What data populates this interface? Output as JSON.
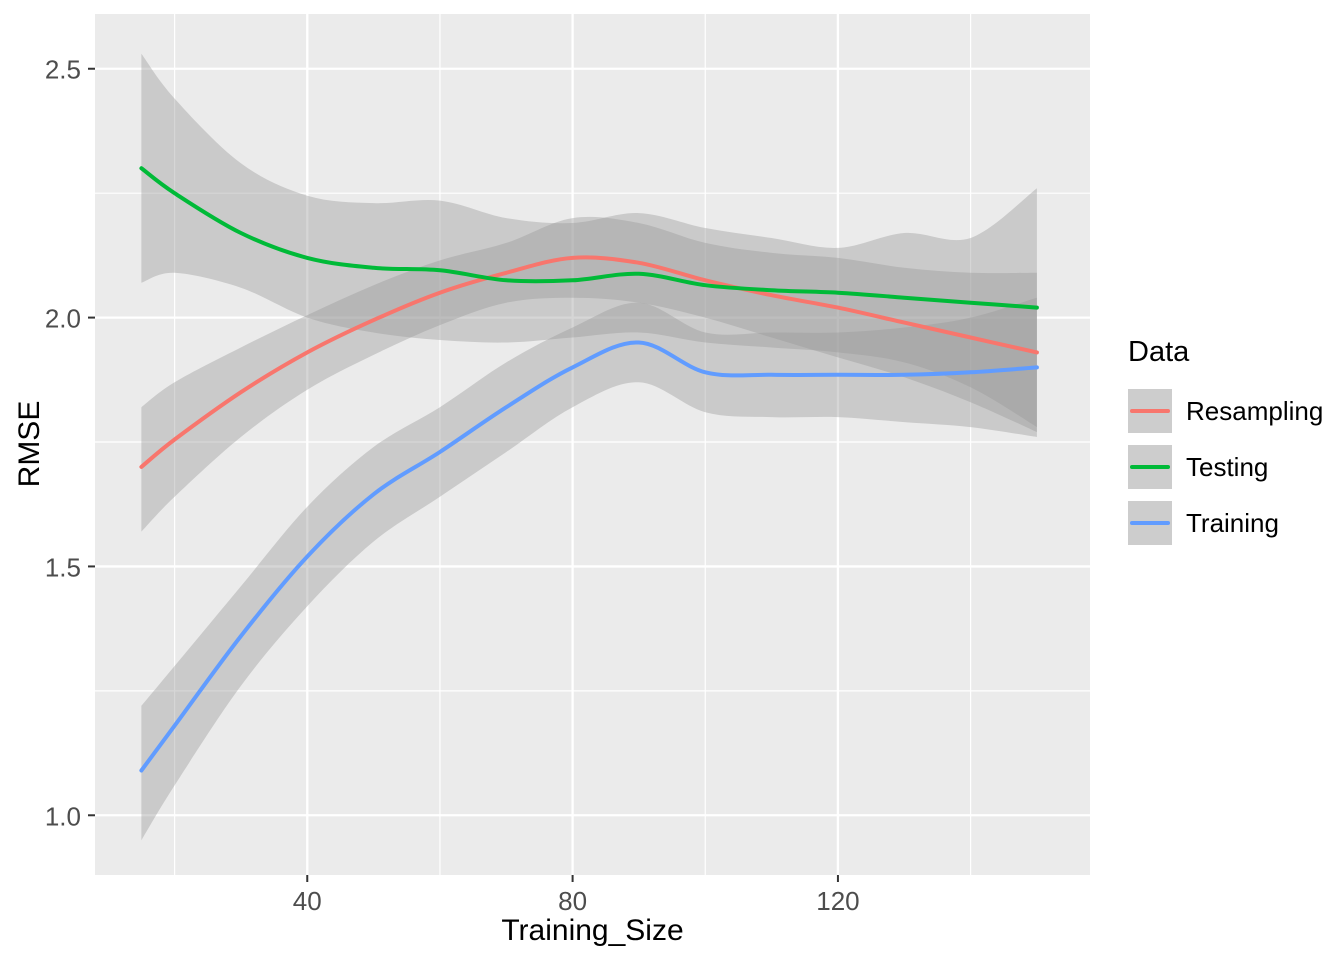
{
  "chart_data": {
    "type": "line",
    "xlabel": "Training_Size",
    "ylabel": "RMSE",
    "legend_title": "Data",
    "legend_position": "right",
    "grid": true,
    "panel_background": "#EBEBEB",
    "grid_color": "#FFFFFF",
    "ribbon_color": "#999999",
    "ribbon_opacity": 0.4,
    "tick_color": "#333333",
    "tick_label_color": "#4D4D4D",
    "xlim": [
      8,
      158
    ],
    "ylim": [
      0.88,
      2.61
    ],
    "x_ticks": [
      40,
      80,
      120
    ],
    "x_tick_labels": [
      "40",
      "80",
      "120"
    ],
    "x_minor_ticks": [
      20,
      60,
      100,
      140
    ],
    "y_ticks": [
      1.0,
      1.5,
      2.0,
      2.5
    ],
    "y_tick_labels": [
      "1.0",
      "1.5",
      "2.0",
      "2.5"
    ],
    "y_minor_ticks": [
      1.25,
      1.75,
      2.25
    ],
    "x": [
      15,
      20,
      30,
      40,
      50,
      60,
      70,
      80,
      90,
      100,
      110,
      120,
      130,
      140,
      150
    ],
    "series": [
      {
        "name": "Resampling",
        "color": "#F8766D",
        "values": [
          1.7,
          1.755,
          1.85,
          1.93,
          1.995,
          2.05,
          2.09,
          2.12,
          2.11,
          2.075,
          2.045,
          2.02,
          1.99,
          1.96,
          1.93
        ],
        "ribbon_lower": [
          1.57,
          1.64,
          1.76,
          1.855,
          1.925,
          1.985,
          2.03,
          2.04,
          2.03,
          2.0,
          1.96,
          1.92,
          1.88,
          1.83,
          1.77
        ],
        "ribbon_upper": [
          1.82,
          1.87,
          1.94,
          2.005,
          2.065,
          2.115,
          2.15,
          2.2,
          2.19,
          2.15,
          2.13,
          2.12,
          2.1,
          2.09,
          2.09
        ]
      },
      {
        "name": "Testing",
        "color": "#00BA38",
        "values": [
          2.3,
          2.25,
          2.17,
          2.12,
          2.1,
          2.095,
          2.075,
          2.075,
          2.088,
          2.065,
          2.055,
          2.05,
          2.04,
          2.03,
          2.02
        ],
        "ribbon_lower": [
          2.07,
          2.09,
          2.06,
          2.0,
          1.97,
          1.955,
          1.95,
          1.96,
          1.97,
          1.95,
          1.94,
          1.93,
          1.91,
          1.86,
          1.78
        ],
        "ribbon_upper": [
          2.53,
          2.44,
          2.31,
          2.245,
          2.23,
          2.235,
          2.2,
          2.19,
          2.21,
          2.18,
          2.16,
          2.14,
          2.17,
          2.16,
          2.26
        ]
      },
      {
        "name": "Training",
        "color": "#619CFF",
        "values": [
          1.09,
          1.18,
          1.36,
          1.52,
          1.645,
          1.73,
          1.82,
          1.9,
          1.95,
          1.89,
          1.885,
          1.885,
          1.885,
          1.89,
          1.9
        ],
        "ribbon_lower": [
          0.95,
          1.06,
          1.26,
          1.42,
          1.55,
          1.64,
          1.73,
          1.82,
          1.87,
          1.81,
          1.8,
          1.8,
          1.79,
          1.78,
          1.76
        ],
        "ribbon_upper": [
          1.22,
          1.3,
          1.46,
          1.62,
          1.74,
          1.82,
          1.91,
          1.98,
          2.03,
          1.97,
          1.97,
          1.97,
          1.98,
          2.0,
          2.04
        ]
      }
    ]
  }
}
